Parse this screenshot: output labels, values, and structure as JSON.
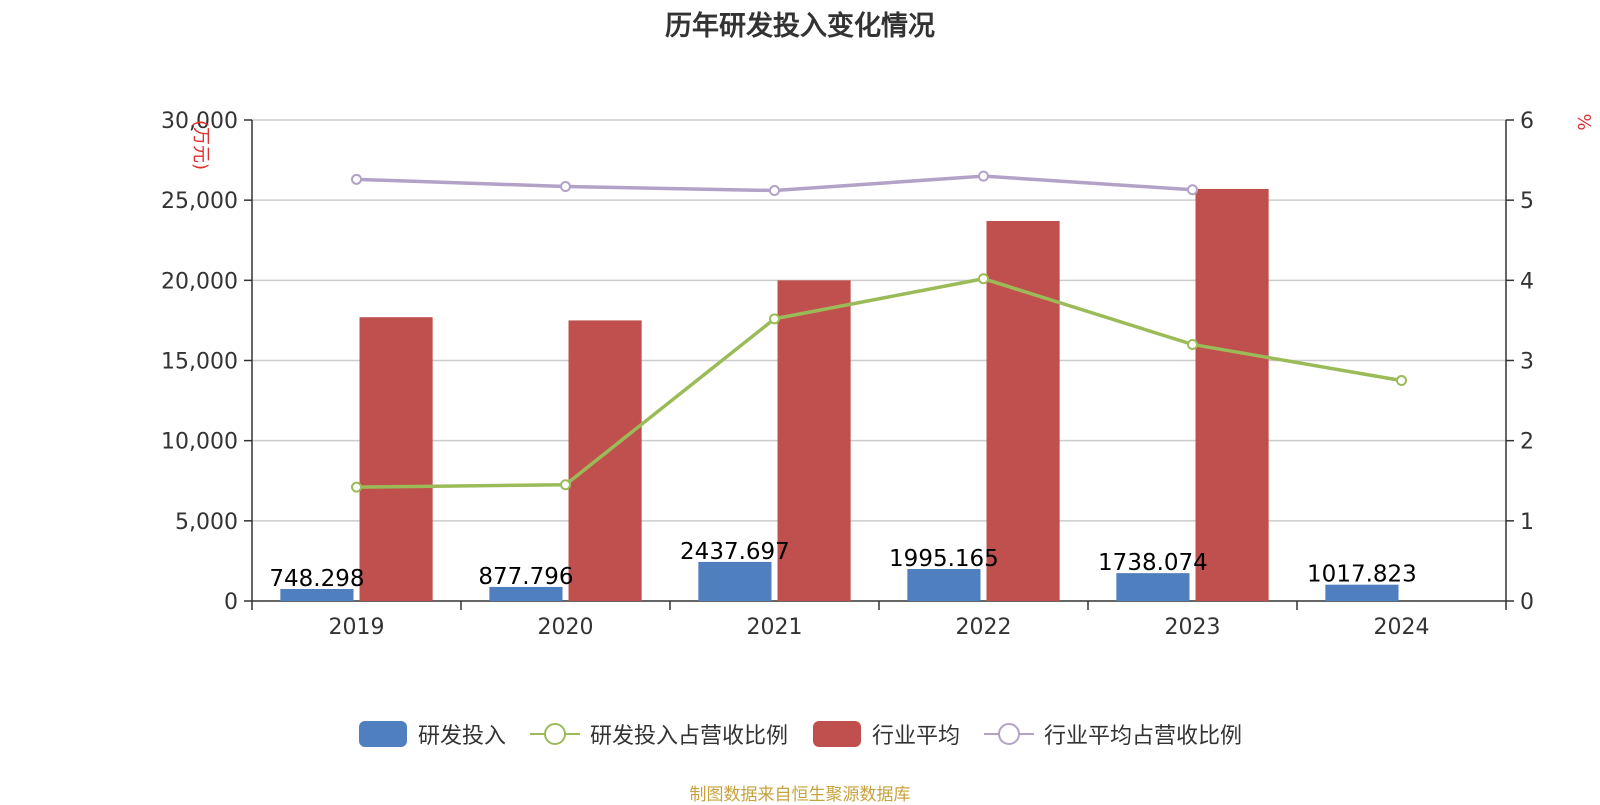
{
  "chart_data": {
    "type": "bar",
    "title": "历年研发投入变化情况",
    "categories": [
      "2019",
      "2020",
      "2021",
      "2022",
      "2023",
      "2024"
    ],
    "y_left": {
      "label": "(万元)",
      "ticks": [
        "0",
        "5,000",
        "10,000",
        "15,000",
        "20,000",
        "25,000",
        "30,000"
      ],
      "range": [
        0,
        30000
      ]
    },
    "y_right": {
      "label": "%",
      "ticks": [
        "0",
        "1",
        "2",
        "3",
        "4",
        "5",
        "6"
      ],
      "range": [
        0,
        6
      ]
    },
    "series": [
      {
        "name": "研发投入",
        "type": "bar",
        "axis": "left",
        "color": "#4f7fbf",
        "values": [
          748.298,
          877.796,
          2437.697,
          1995.165,
          1738.074,
          1017.823
        ],
        "labels": [
          "748.298",
          "877.796",
          "2437.697",
          "1995.165",
          "1738.074",
          "1017.823"
        ]
      },
      {
        "name": "研发投入占营收比例",
        "type": "line",
        "axis": "right",
        "color": "#9bbb59",
        "values": [
          1.42,
          1.45,
          3.52,
          4.02,
          3.2,
          2.75
        ]
      },
      {
        "name": "行业平均",
        "type": "bar",
        "axis": "left",
        "color": "#c0504d",
        "values": [
          17700,
          17500,
          20000,
          23700,
          25700,
          null
        ]
      },
      {
        "name": "行业平均占营收比例",
        "type": "line",
        "axis": "right",
        "color": "#b3a2c7",
        "values": [
          5.26,
          5.17,
          5.12,
          5.3,
          5.13,
          null
        ]
      }
    ],
    "grid": true,
    "legend_position": "bottom"
  },
  "source_note": "制图数据来自恒生聚源数据库"
}
